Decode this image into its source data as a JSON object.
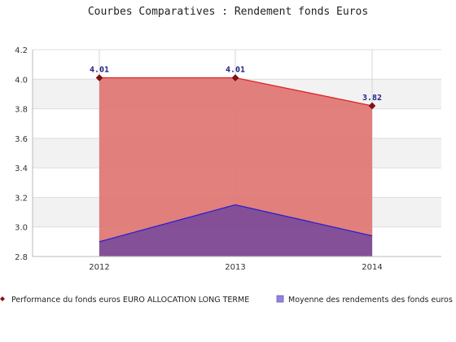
{
  "chart_data": {
    "type": "area",
    "title": "Courbes Comparatives : Rendement fonds Euros",
    "categories": [
      "2012",
      "2013",
      "2014"
    ],
    "ylim": [
      2.8,
      4.2
    ],
    "yticks": [
      "2.8",
      "3.0",
      "3.2",
      "3.4",
      "3.6",
      "3.8",
      "4.0",
      "4.2"
    ],
    "grid": true,
    "legend_position": "bottom",
    "series": [
      {
        "name": "Performance du fonds euros EURO ALLOCATION LONG TERME",
        "values": [
          4.01,
          4.01,
          3.82
        ],
        "labels": [
          "4.01",
          "4.01",
          "3.82"
        ],
        "line_color": "#e0242a",
        "fill_color": "#e07572",
        "marker_color": "#8b0f0f"
      },
      {
        "name": "Moyenne des rendements des fonds euros",
        "values": [
          2.9,
          3.15,
          2.94
        ],
        "line_color": "#2a1fd0",
        "fill_color": "#7a4a9a"
      }
    ]
  }
}
